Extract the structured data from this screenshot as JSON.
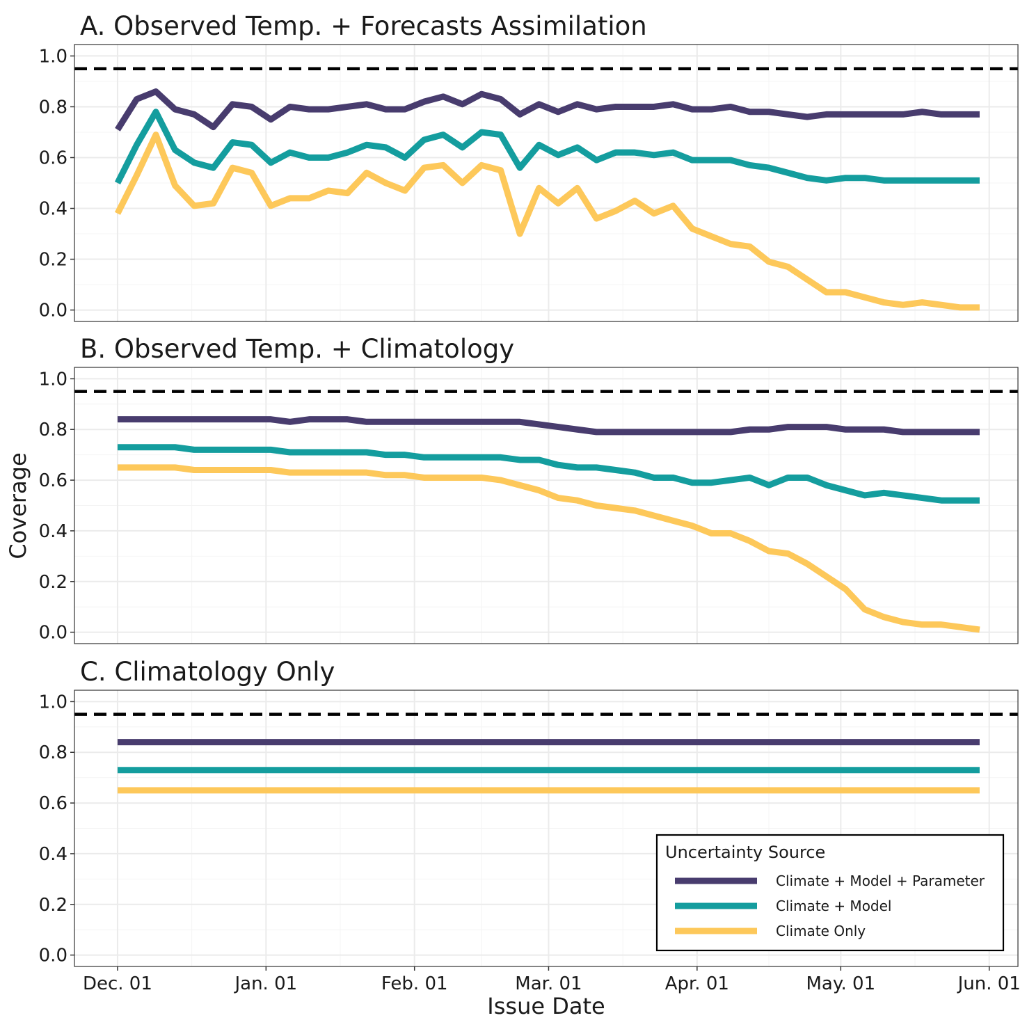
{
  "chart_data": {
    "type": "line",
    "ylabel": "Coverage",
    "xlabel": "Issue Date",
    "x_tick_labels": [
      "Dec. 01",
      "Jan. 01",
      "Feb. 01",
      "Mar. 01",
      "Apr. 01",
      "May. 01",
      "Jun. 01"
    ],
    "x_tick_dates": [
      "2020-12-01",
      "2021-01-01",
      "2021-02-01",
      "2021-03-01",
      "2021-04-01",
      "2021-05-01",
      "2021-06-01"
    ],
    "x_range": [
      "2020-11-22",
      "2021-06-07"
    ],
    "y_ticks": [
      "0.0",
      "0.2",
      "0.4",
      "0.6",
      "0.8",
      "1.0"
    ],
    "ylim": [
      -0.045,
      1.045
    ],
    "reference_line": 0.95,
    "grid": true,
    "legend": {
      "title": "Uncertainty Source",
      "position": "bottom-right",
      "entries": [
        "Climate + Model + Parameter",
        "Climate + Model",
        "Climate Only"
      ]
    },
    "series_colors": {
      "Climate + Model + Parameter": "#483C6E",
      "Climate + Model": "#149D9E",
      "Climate Only": "#FDC85A"
    },
    "issue_dates": [
      "2020-12-01",
      "2020-12-05",
      "2020-12-09",
      "2020-12-13",
      "2020-12-17",
      "2020-12-21",
      "2020-12-25",
      "2020-12-29",
      "2021-01-02",
      "2021-01-06",
      "2021-01-10",
      "2021-01-14",
      "2021-01-18",
      "2021-01-22",
      "2021-01-26",
      "2021-01-30",
      "2021-02-03",
      "2021-02-07",
      "2021-02-11",
      "2021-02-15",
      "2021-02-19",
      "2021-02-23",
      "2021-02-27",
      "2021-03-03",
      "2021-03-07",
      "2021-03-11",
      "2021-03-15",
      "2021-03-19",
      "2021-03-23",
      "2021-03-27",
      "2021-03-31",
      "2021-04-04",
      "2021-04-08",
      "2021-04-12",
      "2021-04-16",
      "2021-04-20",
      "2021-04-24",
      "2021-04-28",
      "2021-05-02",
      "2021-05-06",
      "2021-05-10",
      "2021-05-14",
      "2021-05-18",
      "2021-05-22",
      "2021-05-26",
      "2021-05-30"
    ],
    "panels": [
      {
        "title": "A. Observed Temp. + Forecasts Assimilation",
        "series": [
          {
            "name": "Climate + Model + Parameter",
            "values": [
              0.71,
              0.83,
              0.86,
              0.79,
              0.77,
              0.72,
              0.81,
              0.8,
              0.75,
              0.8,
              0.79,
              0.79,
              0.8,
              0.81,
              0.79,
              0.79,
              0.82,
              0.84,
              0.81,
              0.85,
              0.83,
              0.77,
              0.81,
              0.78,
              0.81,
              0.79,
              0.8,
              0.8,
              0.8,
              0.81,
              0.79,
              0.79,
              0.8,
              0.78,
              0.78,
              0.77,
              0.76,
              0.77,
              0.77,
              0.77,
              0.77,
              0.77,
              0.78,
              0.77,
              0.77,
              0.77
            ]
          },
          {
            "name": "Climate + Model",
            "values": [
              0.5,
              0.65,
              0.78,
              0.63,
              0.58,
              0.56,
              0.66,
              0.65,
              0.58,
              0.62,
              0.6,
              0.6,
              0.62,
              0.65,
              0.64,
              0.6,
              0.67,
              0.69,
              0.64,
              0.7,
              0.69,
              0.56,
              0.65,
              0.61,
              0.64,
              0.59,
              0.62,
              0.62,
              0.61,
              0.62,
              0.59,
              0.59,
              0.59,
              0.57,
              0.56,
              0.54,
              0.52,
              0.51,
              0.52,
              0.52,
              0.51,
              0.51,
              0.51,
              0.51,
              0.51,
              0.51
            ]
          },
          {
            "name": "Climate Only",
            "values": [
              0.38,
              0.53,
              0.69,
              0.49,
              0.41,
              0.42,
              0.56,
              0.54,
              0.41,
              0.44,
              0.44,
              0.47,
              0.46,
              0.54,
              0.5,
              0.47,
              0.56,
              0.57,
              0.5,
              0.57,
              0.55,
              0.3,
              0.48,
              0.42,
              0.48,
              0.36,
              0.39,
              0.43,
              0.38,
              0.41,
              0.32,
              0.29,
              0.26,
              0.25,
              0.19,
              0.17,
              0.12,
              0.07,
              0.07,
              0.05,
              0.03,
              0.02,
              0.03,
              0.02,
              0.01,
              0.01
            ]
          }
        ]
      },
      {
        "title": "B. Observed Temp. + Climatology",
        "series": [
          {
            "name": "Climate + Model + Parameter",
            "values": [
              0.84,
              0.84,
              0.84,
              0.84,
              0.84,
              0.84,
              0.84,
              0.84,
              0.84,
              0.83,
              0.84,
              0.84,
              0.84,
              0.83,
              0.83,
              0.83,
              0.83,
              0.83,
              0.83,
              0.83,
              0.83,
              0.83,
              0.82,
              0.81,
              0.8,
              0.79,
              0.79,
              0.79,
              0.79,
              0.79,
              0.79,
              0.79,
              0.79,
              0.8,
              0.8,
              0.81,
              0.81,
              0.81,
              0.8,
              0.8,
              0.8,
              0.79,
              0.79,
              0.79,
              0.79,
              0.79
            ]
          },
          {
            "name": "Climate + Model",
            "values": [
              0.73,
              0.73,
              0.73,
              0.73,
              0.72,
              0.72,
              0.72,
              0.72,
              0.72,
              0.71,
              0.71,
              0.71,
              0.71,
              0.71,
              0.7,
              0.7,
              0.69,
              0.69,
              0.69,
              0.69,
              0.69,
              0.68,
              0.68,
              0.66,
              0.65,
              0.65,
              0.64,
              0.63,
              0.61,
              0.61,
              0.59,
              0.59,
              0.6,
              0.61,
              0.58,
              0.61,
              0.61,
              0.58,
              0.56,
              0.54,
              0.55,
              0.54,
              0.53,
              0.52,
              0.52,
              0.52
            ]
          },
          {
            "name": "Climate Only",
            "values": [
              0.65,
              0.65,
              0.65,
              0.65,
              0.64,
              0.64,
              0.64,
              0.64,
              0.64,
              0.63,
              0.63,
              0.63,
              0.63,
              0.63,
              0.62,
              0.62,
              0.61,
              0.61,
              0.61,
              0.61,
              0.6,
              0.58,
              0.56,
              0.53,
              0.52,
              0.5,
              0.49,
              0.48,
              0.46,
              0.44,
              0.42,
              0.39,
              0.39,
              0.36,
              0.32,
              0.31,
              0.27,
              0.22,
              0.17,
              0.09,
              0.06,
              0.04,
              0.03,
              0.03,
              0.02,
              0.01
            ]
          }
        ]
      },
      {
        "title": "C. Climatology Only",
        "series": [
          {
            "name": "Climate + Model + Parameter",
            "values": [
              0.84,
              0.84,
              0.84,
              0.84,
              0.84,
              0.84,
              0.84,
              0.84,
              0.84,
              0.84,
              0.84,
              0.84,
              0.84,
              0.84,
              0.84,
              0.84,
              0.84,
              0.84,
              0.84,
              0.84,
              0.84,
              0.84,
              0.84,
              0.84,
              0.84,
              0.84,
              0.84,
              0.84,
              0.84,
              0.84,
              0.84,
              0.84,
              0.84,
              0.84,
              0.84,
              0.84,
              0.84,
              0.84,
              0.84,
              0.84,
              0.84,
              0.84,
              0.84,
              0.84,
              0.84,
              0.84
            ]
          },
          {
            "name": "Climate + Model",
            "values": [
              0.73,
              0.73,
              0.73,
              0.73,
              0.73,
              0.73,
              0.73,
              0.73,
              0.73,
              0.73,
              0.73,
              0.73,
              0.73,
              0.73,
              0.73,
              0.73,
              0.73,
              0.73,
              0.73,
              0.73,
              0.73,
              0.73,
              0.73,
              0.73,
              0.73,
              0.73,
              0.73,
              0.73,
              0.73,
              0.73,
              0.73,
              0.73,
              0.73,
              0.73,
              0.73,
              0.73,
              0.73,
              0.73,
              0.73,
              0.73,
              0.73,
              0.73,
              0.73,
              0.73,
              0.73,
              0.73
            ]
          },
          {
            "name": "Climate Only",
            "values": [
              0.65,
              0.65,
              0.65,
              0.65,
              0.65,
              0.65,
              0.65,
              0.65,
              0.65,
              0.65,
              0.65,
              0.65,
              0.65,
              0.65,
              0.65,
              0.65,
              0.65,
              0.65,
              0.65,
              0.65,
              0.65,
              0.65,
              0.65,
              0.65,
              0.65,
              0.65,
              0.65,
              0.65,
              0.65,
              0.65,
              0.65,
              0.65,
              0.65,
              0.65,
              0.65,
              0.65,
              0.65,
              0.65,
              0.65,
              0.65,
              0.65,
              0.65,
              0.65,
              0.65,
              0.65,
              0.65
            ]
          }
        ]
      }
    ]
  }
}
